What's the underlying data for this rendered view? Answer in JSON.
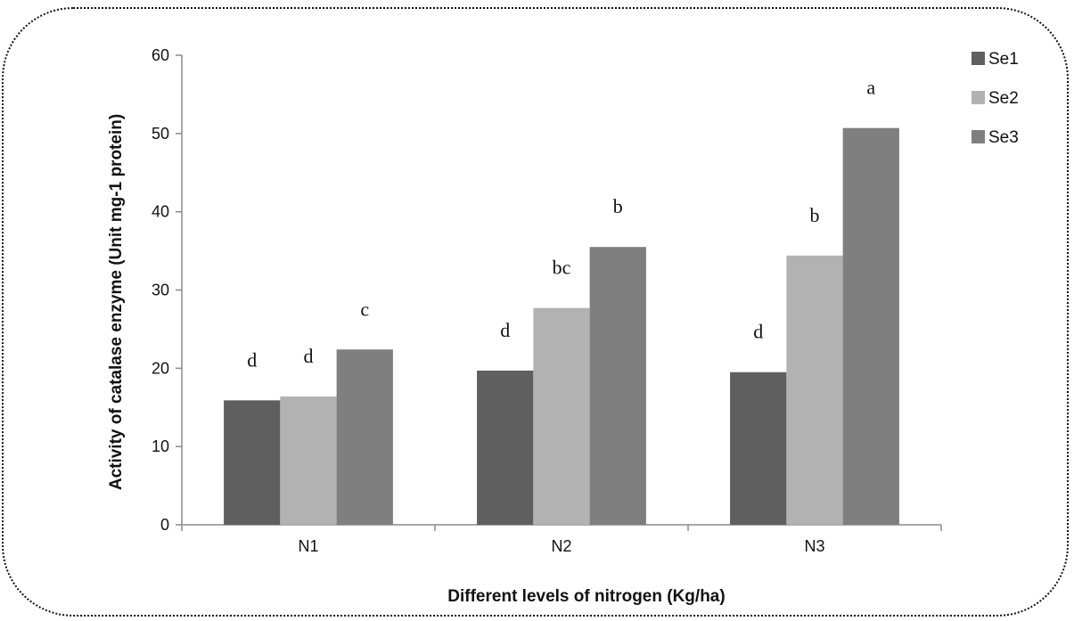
{
  "chart_data": {
    "type": "bar",
    "categories": [
      "N1",
      "N2",
      "N3"
    ],
    "series": [
      {
        "name": "Se1",
        "color": "#5f5f5f",
        "values": [
          15.9,
          19.7,
          19.5
        ],
        "labels": [
          "d",
          "d",
          "d"
        ]
      },
      {
        "name": "Se2",
        "color": "#b2b2b2",
        "values": [
          16.4,
          27.7,
          34.4
        ],
        "labels": [
          "d",
          "bc",
          "b"
        ]
      },
      {
        "name": "Se3",
        "color": "#7f7f7f",
        "values": [
          22.4,
          35.5,
          50.7
        ],
        "labels": [
          "c",
          "b",
          "a"
        ]
      }
    ],
    "xlabel": "Different levels of nitrogen (Kg/ha)",
    "ylabel": "Activity of catalase enzyme (Unit mg-1 protein)",
    "ylim": [
      0,
      60
    ],
    "yticks": [
      0,
      10,
      20,
      30,
      40,
      50,
      60
    ],
    "grid": false,
    "legend_position": "right"
  }
}
